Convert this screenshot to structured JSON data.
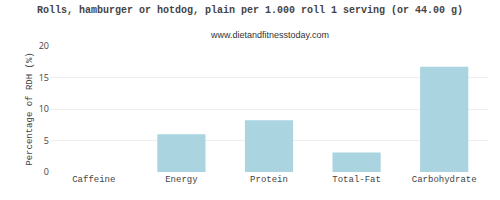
{
  "chart_data": {
    "type": "bar",
    "title": "Rolls, hamburger or hotdog, plain per 1.000 roll 1 serving (or 44.00 g)",
    "subtitle": "www.dietandfitnesstoday.com",
    "categories": [
      "Caffeine",
      "Energy",
      "Protein",
      "Total-Fat",
      "Carbohydrate"
    ],
    "values": [
      0,
      6.0,
      8.2,
      3.1,
      16.7
    ],
    "color": "#aad4e0",
    "ylabel": "Percentage of RDH (%)",
    "ylim": [
      0,
      20
    ],
    "yticks": [
      0,
      5,
      10,
      15,
      20
    ],
    "grid": true
  }
}
